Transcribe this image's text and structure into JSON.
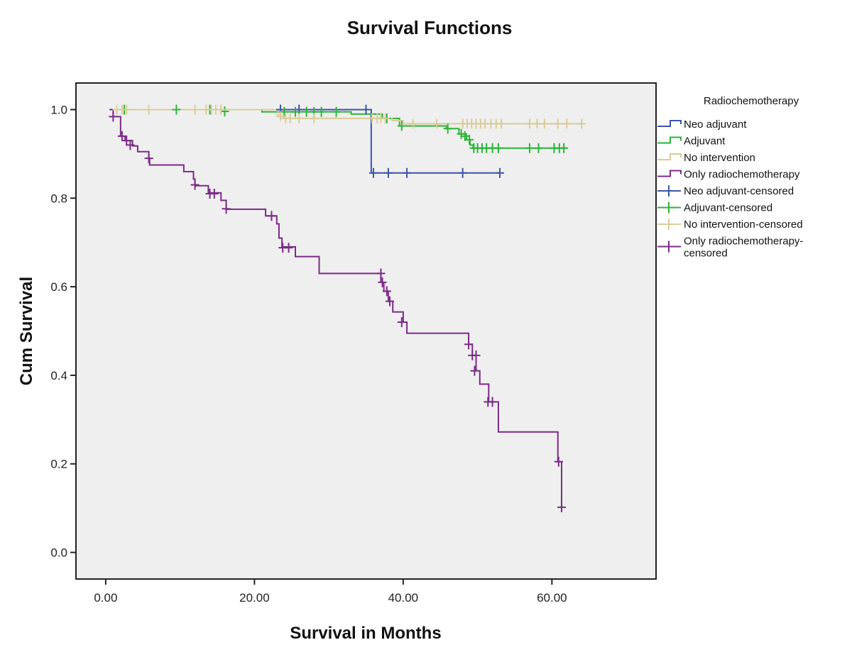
{
  "chart_data": {
    "type": "line",
    "subtype": "kaplan-meier step",
    "title": "Survival Functions",
    "xlabel": "Survival in Months",
    "ylabel": "Cum Survival",
    "xlim": [
      -4,
      74
    ],
    "ylim": [
      -0.06,
      1.06
    ],
    "xticks": [
      0,
      20,
      40,
      60
    ],
    "xtick_labels": [
      "0.00",
      "20.00",
      "40.00",
      "60.00"
    ],
    "yticks": [
      0,
      0.2,
      0.4,
      0.6,
      0.8,
      1.0
    ],
    "ytick_labels": [
      "0.0",
      "0.2",
      "0.4",
      "0.6",
      "0.8",
      "1.0"
    ],
    "grid": false,
    "plot_background": "#efefef",
    "legend": {
      "title": "Radiochemotherapy",
      "placement": "right",
      "entries": [
        {
          "label": "Neo adjuvant",
          "kind": "line",
          "series": 0
        },
        {
          "label": "Adjuvant",
          "kind": "line",
          "series": 1
        },
        {
          "label": "No intervention",
          "kind": "line",
          "series": 2
        },
        {
          "label": "Only radiochemotherapy",
          "kind": "line",
          "series": 3
        },
        {
          "label": "Neo adjuvant-censored",
          "kind": "censor",
          "series": 0
        },
        {
          "label": "Adjuvant-censored",
          "kind": "censor",
          "series": 1
        },
        {
          "label": "No intervention-censored",
          "kind": "censor",
          "series": 2
        },
        {
          "label": "Only radiochemotherapy-",
          "label2": "censored",
          "kind": "censor",
          "series": 3
        }
      ]
    },
    "series": [
      {
        "name": "Neo adjuvant",
        "color": "#3b55a6",
        "steps": [
          [
            0.5,
            1.0
          ],
          [
            35.7,
            0.857
          ],
          [
            53.0,
            0.857
          ]
        ],
        "censored": [
          [
            23.5,
            1.0
          ],
          [
            26.0,
            1.0
          ],
          [
            35.0,
            1.0
          ],
          [
            36.0,
            0.857
          ],
          [
            38.0,
            0.857
          ],
          [
            40.5,
            0.857
          ],
          [
            48.0,
            0.857
          ],
          [
            53.0,
            0.857
          ]
        ]
      },
      {
        "name": "Adjuvant",
        "color": "#2db33a",
        "steps": [
          [
            0.8,
            1.0
          ],
          [
            21.0,
            0.995
          ],
          [
            33.0,
            0.99
          ],
          [
            37.2,
            0.98
          ],
          [
            39.5,
            0.963
          ],
          [
            45.8,
            0.957
          ],
          [
            47.5,
            0.945
          ],
          [
            48.5,
            0.932
          ],
          [
            49.0,
            0.92
          ],
          [
            49.4,
            0.913
          ],
          [
            62.0,
            0.913
          ]
        ],
        "censored": [
          [
            2.5,
            1.0
          ],
          [
            9.5,
            1.0
          ],
          [
            14.0,
            1.0
          ],
          [
            16.0,
            0.996
          ],
          [
            24.0,
            0.995
          ],
          [
            25.5,
            0.995
          ],
          [
            27.0,
            0.995
          ],
          [
            28.0,
            0.995
          ],
          [
            29.0,
            0.995
          ],
          [
            31.0,
            0.995
          ],
          [
            37.8,
            0.98
          ],
          [
            39.8,
            0.963
          ],
          [
            46.0,
            0.957
          ],
          [
            47.8,
            0.945
          ],
          [
            48.3,
            0.94
          ],
          [
            48.9,
            0.932
          ],
          [
            49.5,
            0.913
          ],
          [
            50.0,
            0.913
          ],
          [
            50.6,
            0.913
          ],
          [
            51.2,
            0.913
          ],
          [
            52.0,
            0.913
          ],
          [
            52.8,
            0.913
          ],
          [
            57.0,
            0.913
          ],
          [
            58.2,
            0.913
          ],
          [
            60.3,
            0.913
          ],
          [
            61.0,
            0.913
          ],
          [
            61.6,
            0.913
          ]
        ]
      },
      {
        "name": "No intervention",
        "color": "#d9cc99",
        "steps": [
          [
            0.8,
            1.0
          ],
          [
            23.2,
            0.985
          ],
          [
            24.0,
            0.98
          ],
          [
            36.0,
            0.98
          ],
          [
            38.5,
            0.975
          ],
          [
            40.0,
            0.968
          ],
          [
            64.0,
            0.968
          ]
        ],
        "censored": [
          [
            1.5,
            1.0
          ],
          [
            2.2,
            1.0
          ],
          [
            2.8,
            1.0
          ],
          [
            5.8,
            1.0
          ],
          [
            12.0,
            1.0
          ],
          [
            13.5,
            1.0
          ],
          [
            14.2,
            1.0
          ],
          [
            14.8,
            1.0
          ],
          [
            15.5,
            1.0
          ],
          [
            23.5,
            0.985
          ],
          [
            24.2,
            0.98
          ],
          [
            24.8,
            0.98
          ],
          [
            26.0,
            0.98
          ],
          [
            28.0,
            0.98
          ],
          [
            35.8,
            0.98
          ],
          [
            36.5,
            0.98
          ],
          [
            37.0,
            0.98
          ],
          [
            37.6,
            0.98
          ],
          [
            41.3,
            0.968
          ],
          [
            44.5,
            0.968
          ],
          [
            48.0,
            0.968
          ],
          [
            48.6,
            0.968
          ],
          [
            49.2,
            0.968
          ],
          [
            49.8,
            0.968
          ],
          [
            50.4,
            0.968
          ],
          [
            51.0,
            0.968
          ],
          [
            51.8,
            0.968
          ],
          [
            52.5,
            0.968
          ],
          [
            53.2,
            0.968
          ],
          [
            57.0,
            0.968
          ],
          [
            58.0,
            0.968
          ],
          [
            59.0,
            0.968
          ],
          [
            60.8,
            0.968
          ],
          [
            62.0,
            0.968
          ],
          [
            64.0,
            0.968
          ]
        ]
      },
      {
        "name": "Only radiochemotherapy",
        "color": "#7b2b86",
        "steps": [
          [
            0.6,
            1.0
          ],
          [
            1.0,
            0.984
          ],
          [
            2.0,
            0.94
          ],
          [
            2.6,
            0.93
          ],
          [
            3.6,
            0.918
          ],
          [
            4.3,
            0.905
          ],
          [
            5.8,
            0.89
          ],
          [
            5.9,
            0.875
          ],
          [
            10.5,
            0.86
          ],
          [
            11.8,
            0.843
          ],
          [
            12.0,
            0.828
          ],
          [
            13.8,
            0.812
          ],
          [
            15.5,
            0.795
          ],
          [
            16.2,
            0.775
          ],
          [
            21.5,
            0.76
          ],
          [
            23.0,
            0.742
          ],
          [
            23.3,
            0.71
          ],
          [
            23.7,
            0.69
          ],
          [
            25.5,
            0.668
          ],
          [
            28.7,
            0.63
          ],
          [
            37.0,
            0.61
          ],
          [
            37.4,
            0.59
          ],
          [
            38.0,
            0.567
          ],
          [
            38.6,
            0.543
          ],
          [
            40.0,
            0.52
          ],
          [
            40.5,
            0.495
          ],
          [
            48.8,
            0.47
          ],
          [
            49.3,
            0.445
          ],
          [
            49.8,
            0.41
          ],
          [
            50.3,
            0.38
          ],
          [
            51.5,
            0.34
          ],
          [
            52.8,
            0.272
          ],
          [
            60.8,
            0.205
          ],
          [
            61.3,
            0.102
          ]
        ],
        "censored": [
          [
            1.0,
            0.984
          ],
          [
            2.2,
            0.94
          ],
          [
            2.8,
            0.93
          ],
          [
            3.3,
            0.92
          ],
          [
            5.8,
            0.89
          ],
          [
            12.0,
            0.83
          ],
          [
            14.0,
            0.81
          ],
          [
            14.6,
            0.81
          ],
          [
            16.2,
            0.776
          ],
          [
            22.3,
            0.76
          ],
          [
            23.8,
            0.688
          ],
          [
            24.6,
            0.688
          ],
          [
            37.0,
            0.63
          ],
          [
            37.2,
            0.61
          ],
          [
            37.8,
            0.59
          ],
          [
            38.2,
            0.567
          ],
          [
            39.8,
            0.52
          ],
          [
            48.8,
            0.47
          ],
          [
            49.3,
            0.445
          ],
          [
            49.8,
            0.445
          ],
          [
            49.6,
            0.41
          ],
          [
            51.4,
            0.34
          ],
          [
            52.0,
            0.34
          ],
          [
            60.9,
            0.205
          ],
          [
            61.3,
            0.102
          ]
        ]
      }
    ]
  }
}
